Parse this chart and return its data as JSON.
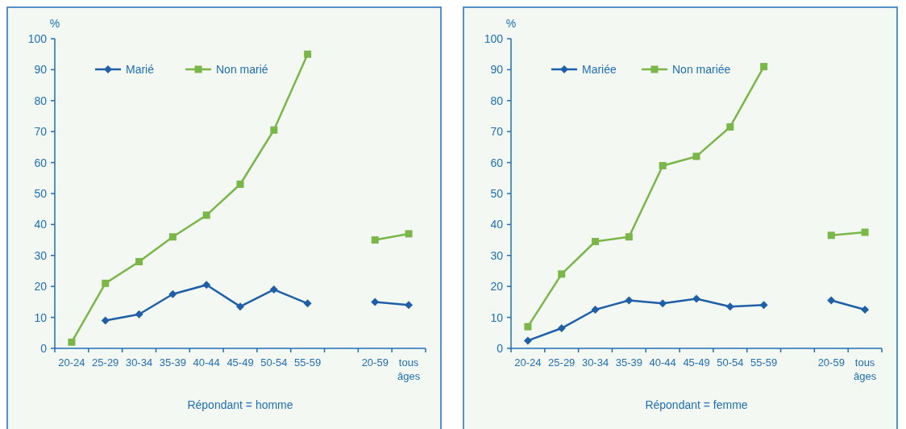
{
  "chart_data": [
    {
      "type": "line",
      "ylabel": "%",
      "xlabel": "Répondant = homme",
      "categories": [
        "20-24",
        "25-29",
        "30-34",
        "35-39",
        "40-44",
        "45-49",
        "50-54",
        "55-59",
        null,
        "20-59",
        "tous âges"
      ],
      "ylim": [
        0,
        100
      ],
      "yticks": [
        0,
        10,
        20,
        30,
        40,
        50,
        60,
        70,
        80,
        90,
        100
      ],
      "legend": "top",
      "series": [
        {
          "name": "Marié",
          "color": "#1f5fa8",
          "marker": "diamond",
          "values": [
            null,
            9,
            11,
            17.5,
            20.5,
            13.5,
            19,
            14.5,
            null,
            15,
            14
          ]
        },
        {
          "name": "Non marié",
          "color": "#7ab648",
          "marker": "square",
          "values": [
            2,
            21,
            28,
            36,
            43,
            53,
            70.5,
            95,
            null,
            35,
            37
          ]
        }
      ]
    },
    {
      "type": "line",
      "ylabel": "%",
      "xlabel": "Répondant = femme",
      "categories": [
        "20-24",
        "25-29",
        "30-34",
        "35-39",
        "40-44",
        "45-49",
        "50-54",
        "55-59",
        null,
        "20-59",
        "tous âges"
      ],
      "ylim": [
        0,
        100
      ],
      "yticks": [
        0,
        10,
        20,
        30,
        40,
        50,
        60,
        70,
        80,
        90,
        100
      ],
      "legend": "top",
      "series": [
        {
          "name": "Mariée",
          "color": "#1f5fa8",
          "marker": "diamond",
          "values": [
            2.5,
            6.5,
            12.5,
            15.5,
            14.5,
            16,
            13.5,
            14,
            null,
            15.5,
            12.5
          ]
        },
        {
          "name": "Non mariée",
          "color": "#7ab648",
          "marker": "square",
          "values": [
            7,
            24,
            34.5,
            36,
            59,
            62,
            71.5,
            91,
            null,
            36.5,
            37.5
          ]
        }
      ]
    }
  ]
}
